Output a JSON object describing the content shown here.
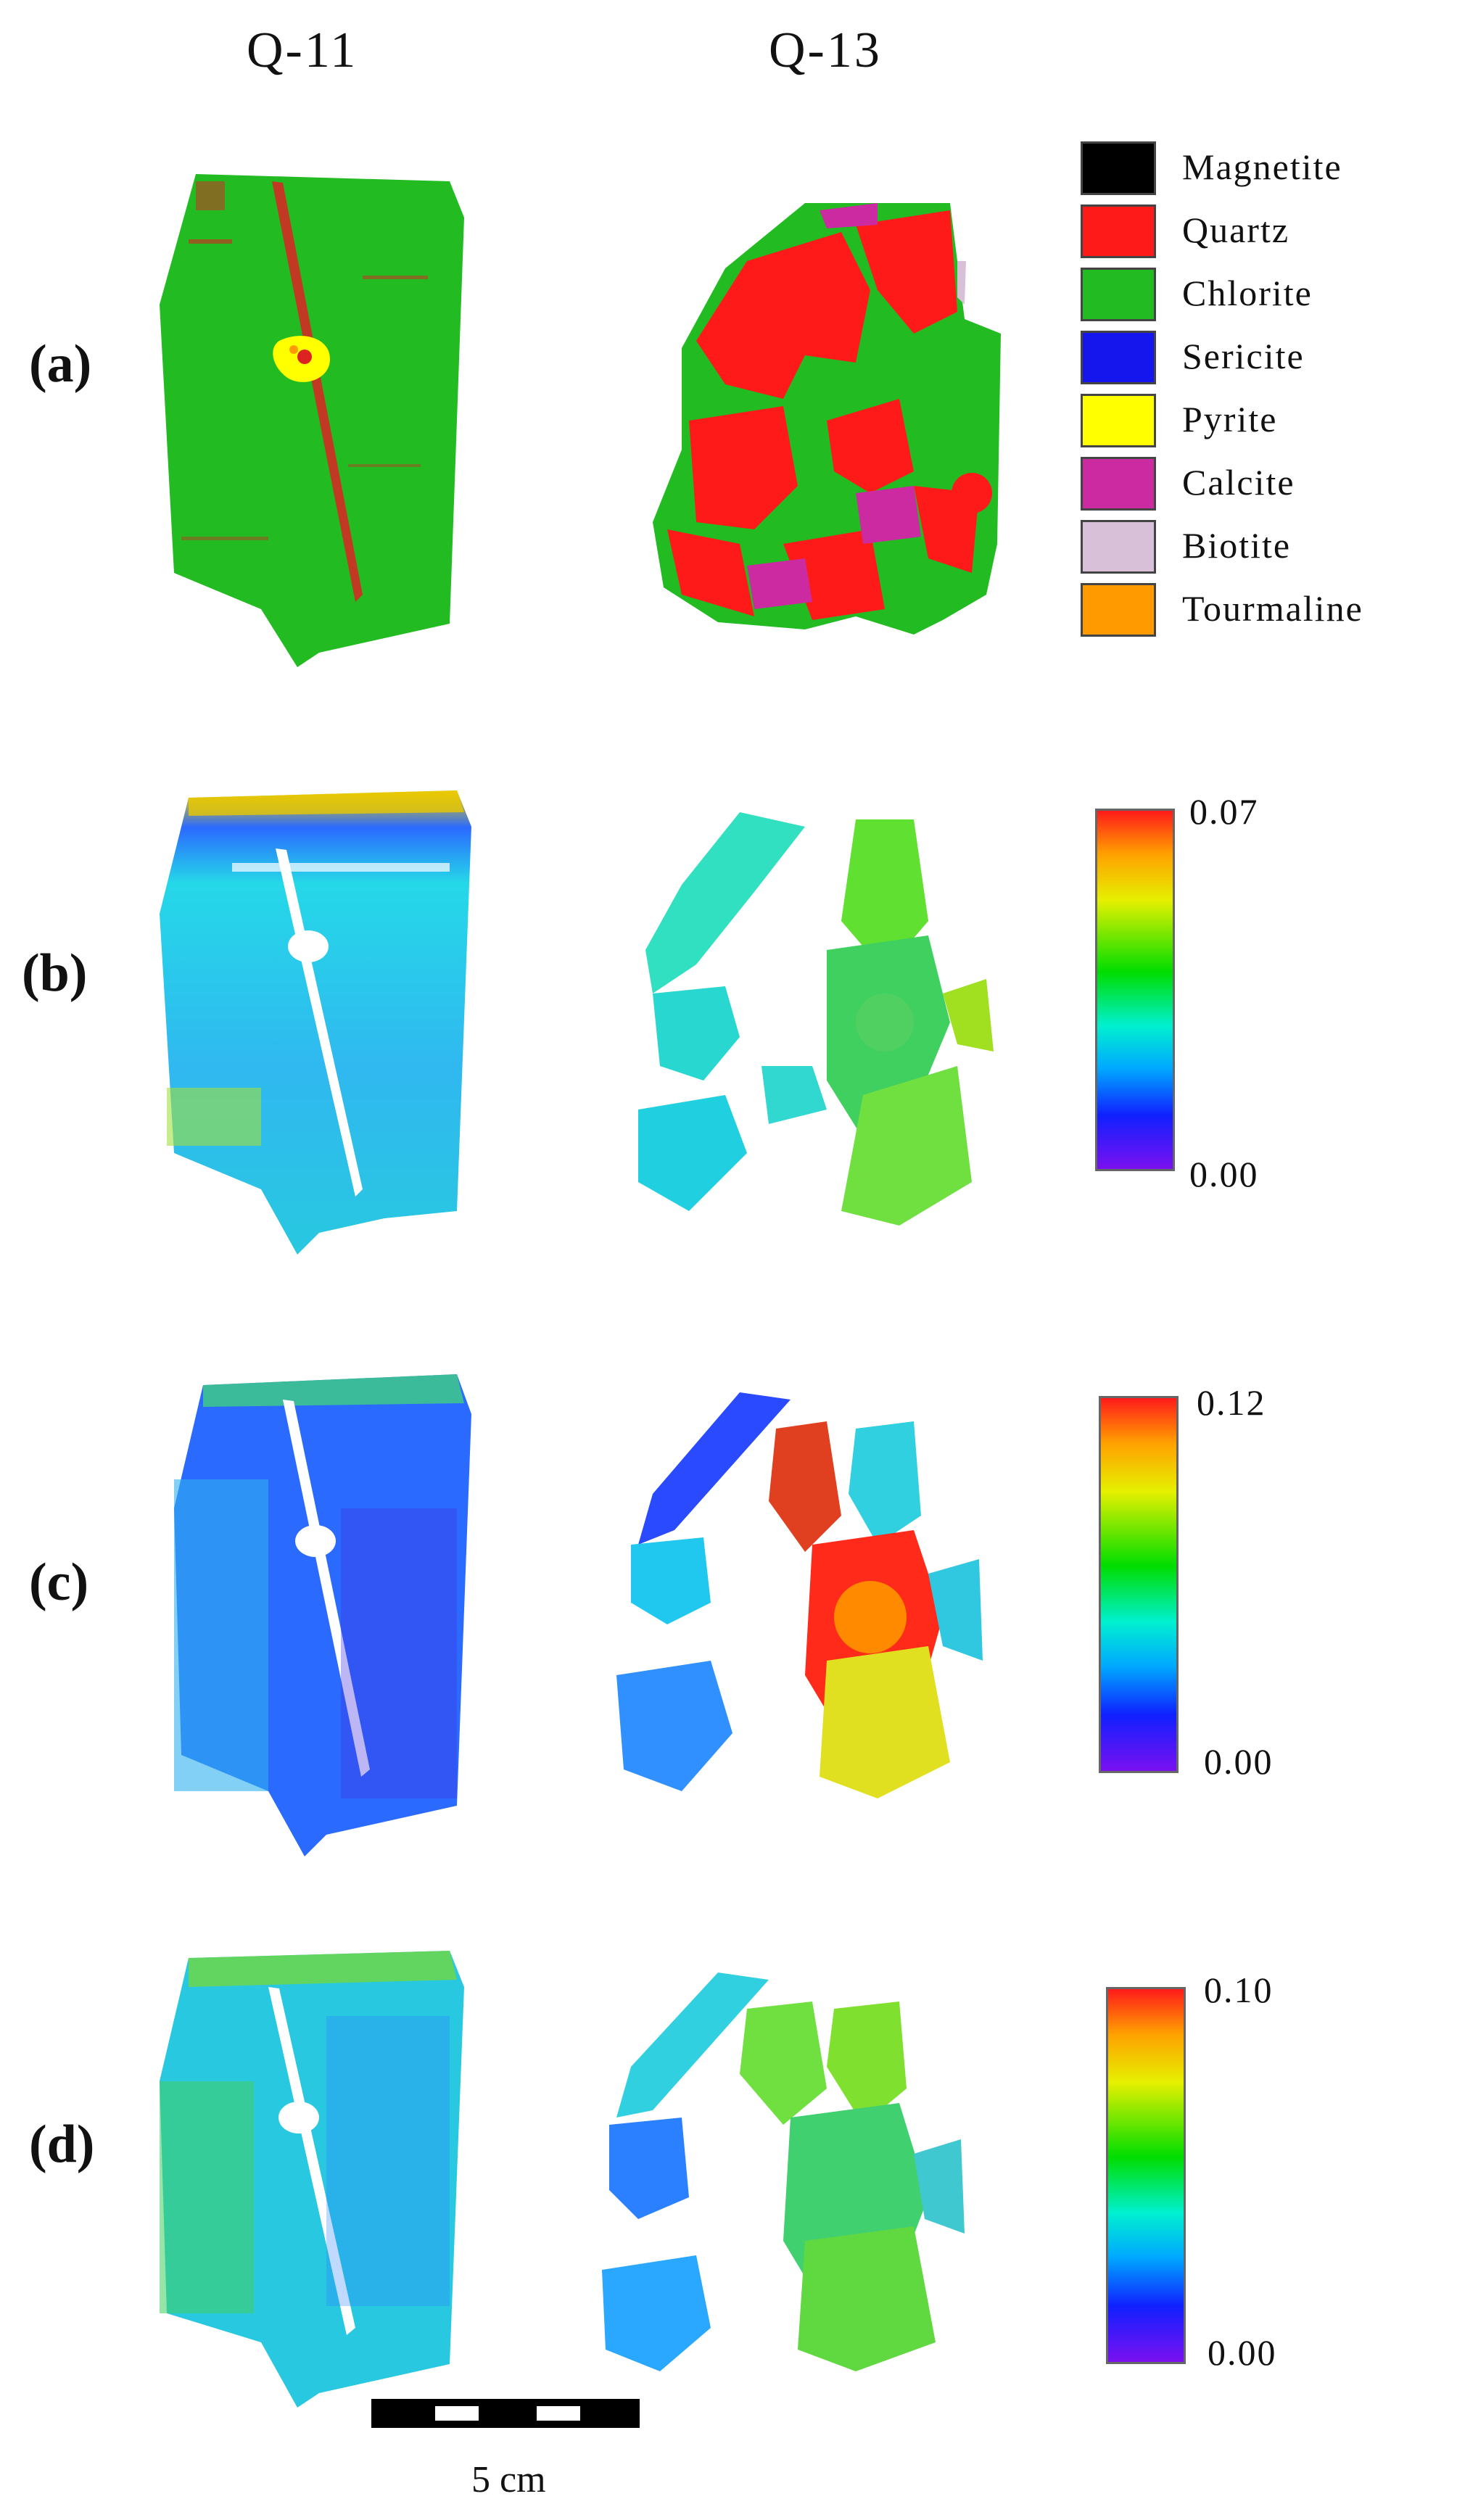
{
  "columns": [
    "Q-11",
    "Q-13"
  ],
  "rows": [
    "(a)",
    "(b)",
    "(c)",
    "(d)"
  ],
  "legend": [
    {
      "label": "Magnetite",
      "color": "#000000"
    },
    {
      "label": "Quartz",
      "color": "#ff1a1a"
    },
    {
      "label": "Chlorite",
      "color": "#22bb22"
    },
    {
      "label": "Sericite",
      "color": "#1515ee"
    },
    {
      "label": "Pyrite",
      "color": "#ffff00"
    },
    {
      "label": "Calcite",
      "color": "#cc2aa0"
    },
    {
      "label": "Biotite",
      "color": "#d8c0d8"
    },
    {
      "label": "Tourmaline",
      "color": "#ff9a00"
    }
  ],
  "colorbars": [
    {
      "max": "0.07",
      "min": "0.00"
    },
    {
      "max": "0.12",
      "min": "0.00"
    },
    {
      "max": "0.10",
      "min": "0.00"
    }
  ],
  "scale_bar": {
    "label": "5 cm"
  }
}
